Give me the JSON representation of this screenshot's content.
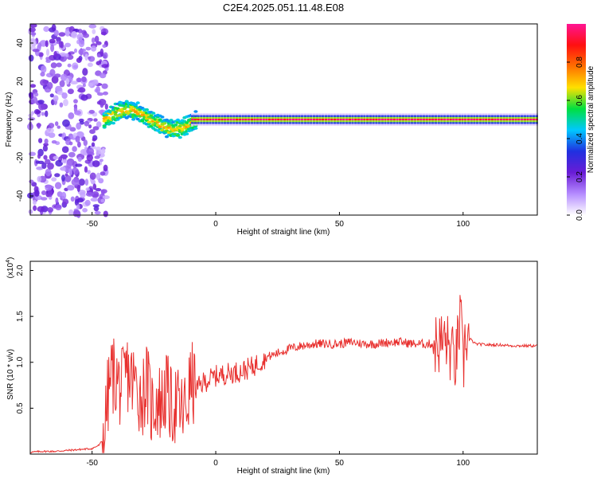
{
  "title": "C2E4.2025.051.11.48.E08",
  "chart_data": [
    {
      "type": "heatmap",
      "name": "spectrogram",
      "xlabel": "Height of straight line (km)",
      "ylabel": "Frequency (Hz)",
      "xlim": [
        -75,
        130
      ],
      "ylim": [
        -50,
        50
      ],
      "xticks": [
        -50,
        0,
        50,
        100
      ],
      "yticks": [
        -40,
        -20,
        0,
        20,
        40
      ],
      "colorbar": {
        "label": "Normalized spectral amplitude",
        "range": [
          0.0,
          1.0
        ],
        "ticks": [
          "0.0",
          "0.2",
          "0.4",
          "0.6",
          "0.8"
        ],
        "colors": [
          "#ffffff",
          "#b58cff",
          "#6a1cd6",
          "#2030e0",
          "#00c8ff",
          "#00e040",
          "#ffe000",
          "#ff7000",
          "#ff1010",
          "#ff1493"
        ]
      },
      "features": {
        "noise_region_x": [
          -75,
          -48
        ],
        "signal_frequency_hz": 0,
        "signal_onset_x": -45,
        "line_amplitude_after_onset": 0.9
      }
    },
    {
      "type": "line",
      "name": "snr",
      "xlabel": "Height of straight line (km)",
      "ylabel": "SNR (10 * v/v)",
      "multiplier": "(x10",
      "multiplier_exp": "4",
      "xlim": [
        -75,
        130
      ],
      "ylim": [
        0,
        2.1
      ],
      "xticks": [
        -50,
        0,
        50,
        100
      ],
      "yticks": [
        0.5,
        1.0,
        1.5,
        2.0
      ],
      "ytick_labels": [
        "0.5",
        "1.0",
        "1.5",
        "2.0"
      ],
      "color": "#e8302e",
      "series": [
        {
          "x": [
            -75,
            -70,
            -65,
            -60,
            -55,
            -50,
            -47,
            -45,
            -44,
            -42,
            -40,
            -38,
            -36,
            -34,
            -32,
            -30,
            -28,
            -26,
            -24,
            -22,
            -20,
            -18,
            -16,
            -14,
            -12,
            -10,
            -8,
            -5,
            0,
            5,
            10,
            15,
            20,
            25,
            30,
            35,
            40,
            45,
            50,
            55,
            60,
            65,
            70,
            75,
            80,
            85,
            90,
            93,
            95,
            97,
            99,
            100,
            101,
            103,
            105,
            110,
            115,
            120,
            125,
            130
          ],
          "y": [
            0.02,
            0.03,
            0.03,
            0.04,
            0.05,
            0.06,
            0.1,
            0.2,
            0.55,
            0.9,
            0.8,
            0.7,
            0.9,
            0.8,
            0.75,
            0.6,
            0.8,
            0.5,
            0.6,
            0.55,
            0.7,
            0.5,
            0.55,
            0.45,
            0.5,
            0.8,
            0.7,
            0.78,
            0.85,
            0.88,
            0.9,
            0.95,
            1.05,
            1.1,
            1.15,
            1.18,
            1.2,
            1.2,
            1.2,
            1.22,
            1.2,
            1.2,
            1.22,
            1.22,
            1.2,
            1.2,
            1.2,
            1.25,
            1.1,
            1.0,
            1.5,
            0.9,
            1.3,
            1.25,
            1.2,
            1.19,
            1.19,
            1.18,
            1.18,
            1.18
          ]
        }
      ]
    }
  ]
}
